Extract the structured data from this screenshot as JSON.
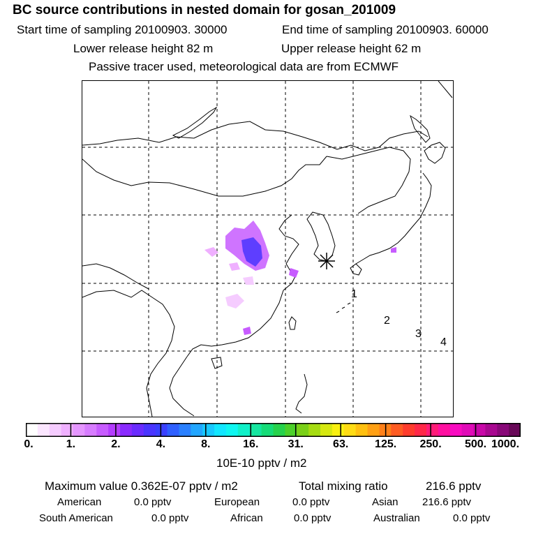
{
  "header": {
    "title": "BC  source contributions in nested domain for gosan_201009",
    "start_label": "Start time of sampling 20100903. 30000",
    "end_label": "End time of sampling 20100903. 60000",
    "lower_label": "Lower release height   82 m",
    "upper_label": "Upper release height   62 m",
    "note": "Passive tracer used, meteorological data are from ECMWF"
  },
  "map": {
    "receptor": "gosan",
    "grid_labels": [
      "1",
      "2",
      "3",
      "4"
    ]
  },
  "colorbar": {
    "ticks": [
      "0.",
      "1.",
      "2.",
      "4.",
      "8.",
      "16.",
      "31.",
      "63.",
      "125.",
      "250.",
      "500.",
      "1000."
    ],
    "colors": [
      "#ffffff",
      "#fbe6ff",
      "#f5ccff",
      "#efb0ff",
      "#e596ff",
      "#d77cff",
      "#c75cff",
      "#b43cff",
      "#8a2bff",
      "#6a2cff",
      "#4a35ff",
      "#3a40ff",
      "#2f60ff",
      "#2a80ff",
      "#22a6ff",
      "#18c8ff",
      "#12e6ff",
      "#0ff6f0",
      "#10f0c8",
      "#16e6a0",
      "#16dc78",
      "#26d24c",
      "#4cd02a",
      "#7ad018",
      "#a6dc12",
      "#d6e810",
      "#f8f010",
      "#ffdc14",
      "#ffc010",
      "#ffa014",
      "#ff8018",
      "#ff5c22",
      "#ff3c2c",
      "#ff2848",
      "#ff1c78",
      "#ff10a0",
      "#f80cc0",
      "#e00cb8",
      "#c808a8",
      "#a80890",
      "#880878",
      "#680858"
    ],
    "units": "10E-10 pptv / m2",
    "colors_semantic": "white-to-purple-blue-cyan-green-yellow-red-magenta"
  },
  "stats": {
    "max_label": "Maximum value  0.362E-07 pptv / m2",
    "total_label": "Total mixing ratio",
    "total_value": "216.6 pptv"
  },
  "regions": [
    {
      "name": "American",
      "value": "0.0 pptv"
    },
    {
      "name": "European",
      "value": "0.0 pptv"
    },
    {
      "name": "Asian",
      "value": "216.6 pptv"
    },
    {
      "name": "South American",
      "value": "0.0 pptv"
    },
    {
      "name": "African",
      "value": "0.0 pptv"
    },
    {
      "name": "Australian",
      "value": "0.0 pptv"
    }
  ]
}
